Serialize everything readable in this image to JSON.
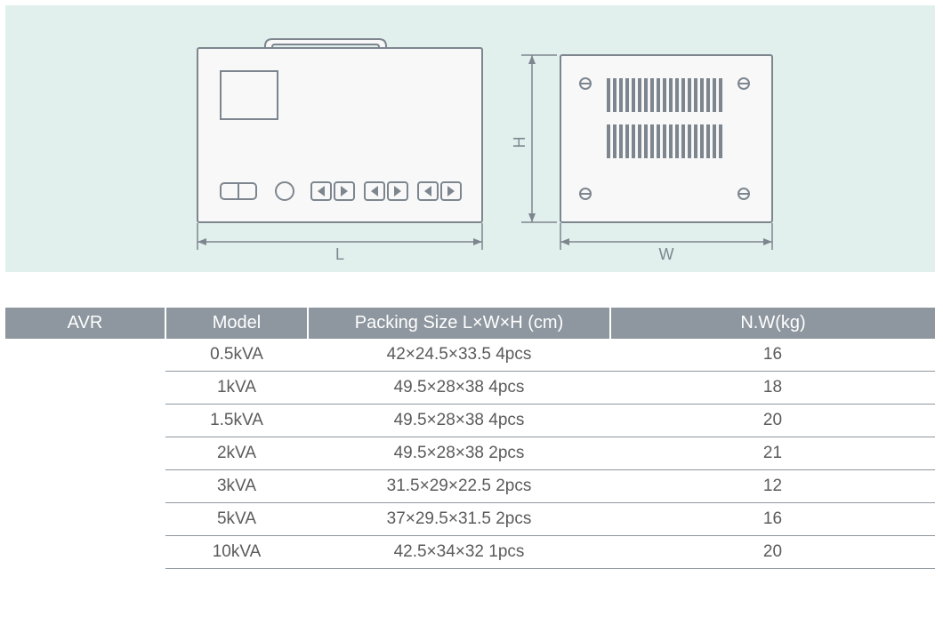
{
  "diagram": {
    "panel_bg": "#e1f0ec",
    "stroke": "#7d868f",
    "fill": "#f8f8f8",
    "labels": {
      "L": "L",
      "W": "W",
      "H": "H"
    },
    "label_fontsize": 18,
    "label_color": "#7d868f"
  },
  "table": {
    "header_bg": "#8e979f",
    "header_fg": "#ffffff",
    "cell_fg": "#5b5b5b",
    "row_border": "#8e979f",
    "columns": [
      "AVR",
      "Model",
      "Packing Size L×W×H (cm)",
      "N.W(kg)"
    ],
    "rows": [
      [
        "",
        "0.5kVA",
        "42×24.5×33.5  4pcs",
        "16"
      ],
      [
        "",
        "1kVA",
        "49.5×28×38  4pcs",
        "18"
      ],
      [
        "",
        "1.5kVA",
        "49.5×28×38  4pcs",
        "20"
      ],
      [
        "",
        "2kVA",
        "49.5×28×38  2pcs",
        "21"
      ],
      [
        "",
        "3kVA",
        "31.5×29×22.5  2pcs",
        "12"
      ],
      [
        "",
        "5kVA",
        "37×29.5×31.5  2pcs",
        "16"
      ],
      [
        "",
        "10kVA",
        "42.5×34×32   1pcs",
        "20"
      ]
    ]
  }
}
